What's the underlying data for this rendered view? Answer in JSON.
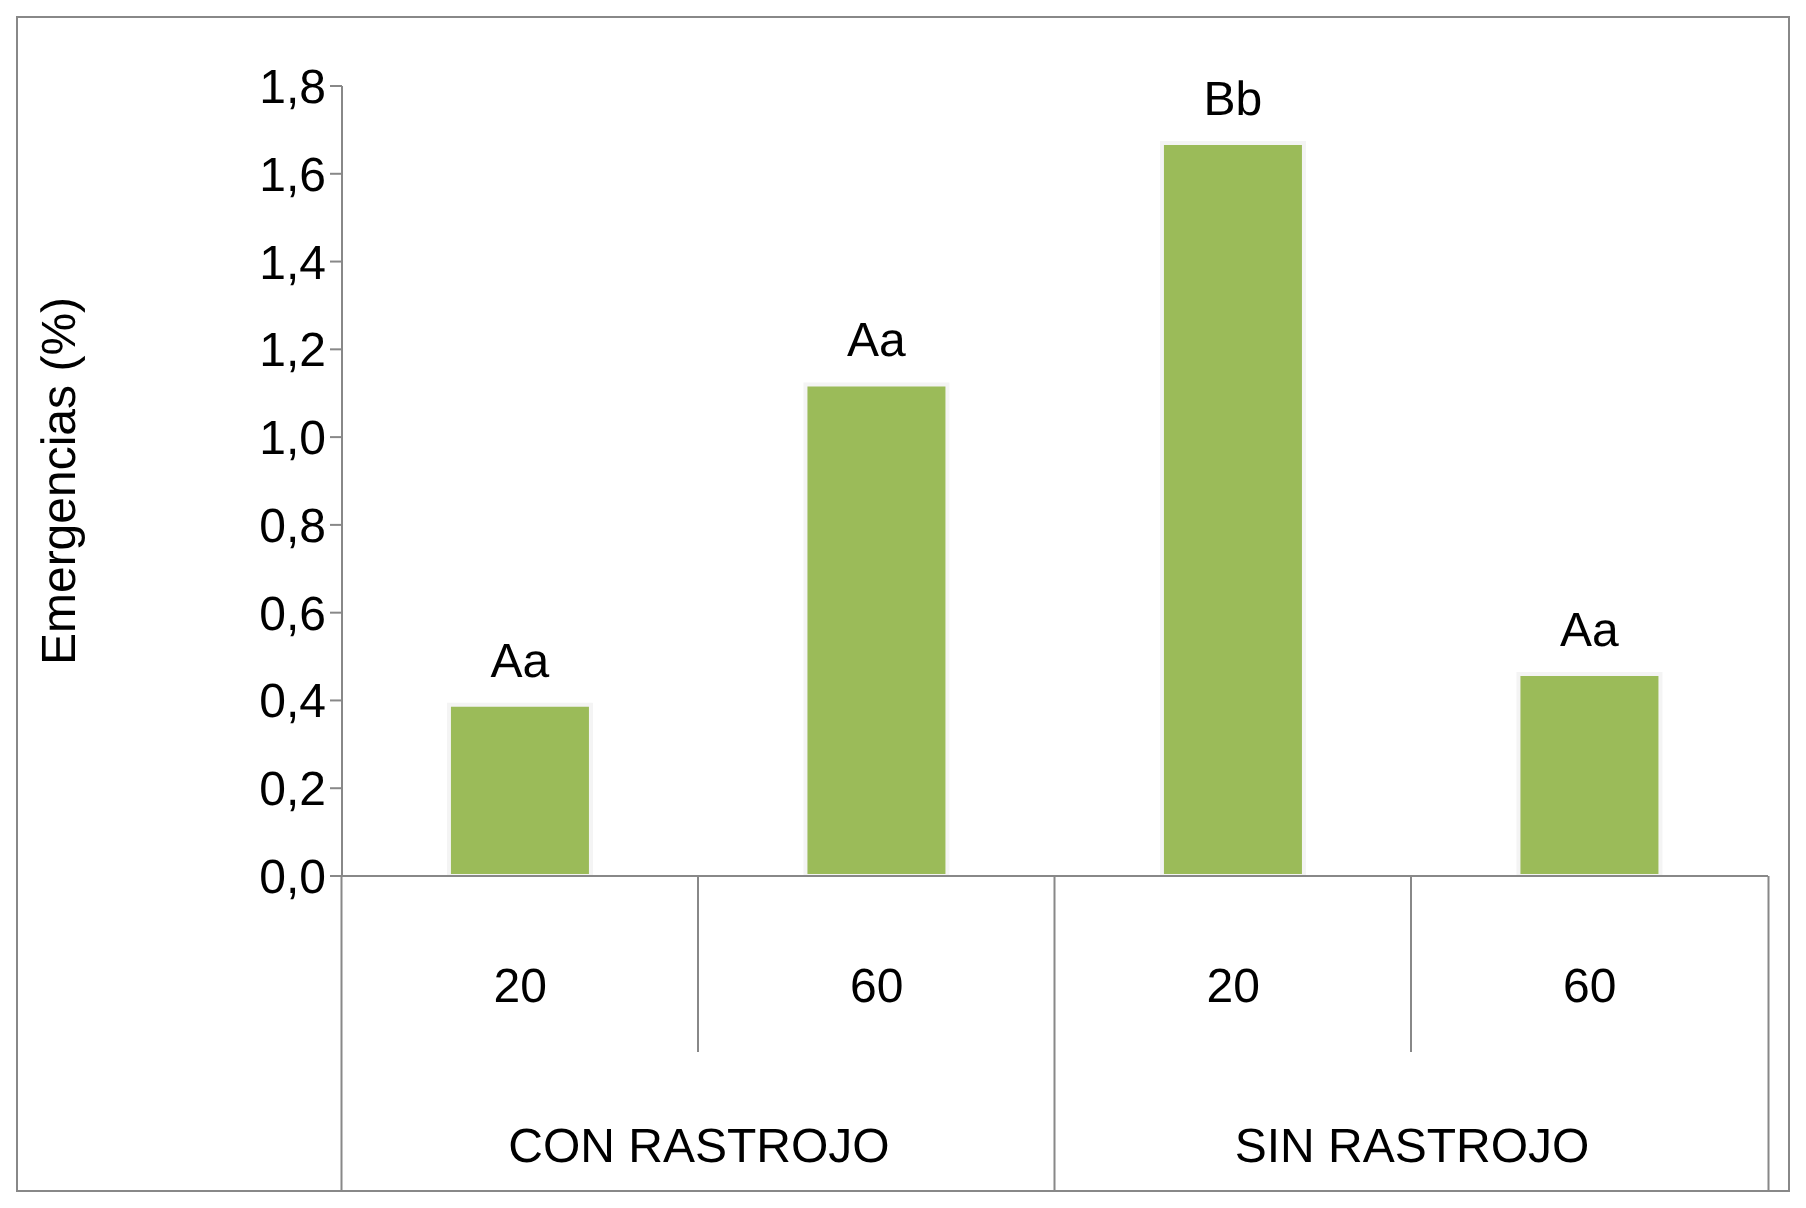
{
  "chart_data": {
    "type": "bar",
    "ylabel": "Emergencias (%)",
    "categories": [
      "20",
      "60",
      "20",
      "60"
    ],
    "values": [
      0.39,
      1.12,
      1.67,
      0.46
    ],
    "value_labels": [
      "Aa",
      "Aa",
      "Bb",
      "Aa"
    ],
    "color": "#9bbb59",
    "annotations": [
      "CON RASTROJO",
      "SIN RASTROJO"
    ],
    "ylim": [
      0,
      1.8
    ],
    "yticks": [
      {
        "value": 0,
        "label": "0,0"
      },
      {
        "value": 0.2,
        "label": "0,2"
      },
      {
        "value": 0.4,
        "label": "0,4"
      },
      {
        "value": 0.6,
        "label": "0,6"
      },
      {
        "value": 0.8,
        "label": "0,8"
      },
      {
        "value": 1,
        "label": "1,0"
      },
      {
        "value": 1.2,
        "label": "1,2"
      },
      {
        "value": 1.4,
        "label": "1,4"
      },
      {
        "value": 1.6,
        "label": "1,6"
      },
      {
        "value": 1.8,
        "label": "1,8"
      }
    ],
    "grid": false,
    "legend": false
  }
}
